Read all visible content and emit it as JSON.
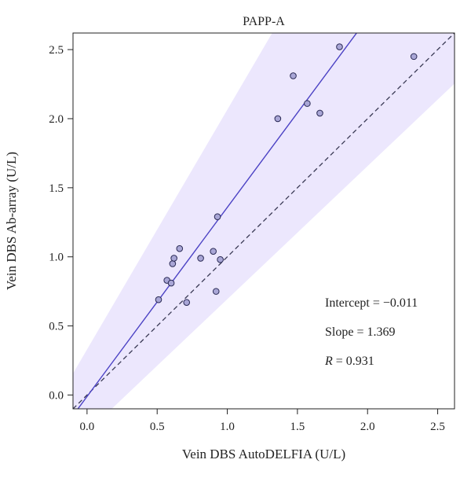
{
  "chart_data": {
    "type": "scatter",
    "title": "PAPP-A",
    "xlabel": "Vein DBS AutoDELFIA (U/L)",
    "ylabel": "Vein DBS Ab-array (U/L)",
    "xlim": [
      -0.1,
      2.62
    ],
    "ylim": [
      -0.1,
      2.62
    ],
    "x_ticks": [
      0.0,
      0.5,
      1.0,
      1.5,
      2.0,
      2.5
    ],
    "y_ticks": [
      0.0,
      0.5,
      1.0,
      1.5,
      2.0,
      2.5
    ],
    "x_tick_labels": [
      "0.0",
      "0.5",
      "1.0",
      "1.5",
      "2.0",
      "2.5"
    ],
    "y_tick_labels": [
      "0.0",
      "0.5",
      "1.0",
      "1.5",
      "2.0",
      "2.5"
    ],
    "points": [
      {
        "x": 0.51,
        "y": 0.69
      },
      {
        "x": 0.57,
        "y": 0.83
      },
      {
        "x": 0.6,
        "y": 0.81
      },
      {
        "x": 0.61,
        "y": 0.95
      },
      {
        "x": 0.62,
        "y": 0.99
      },
      {
        "x": 0.66,
        "y": 1.06
      },
      {
        "x": 0.71,
        "y": 0.67
      },
      {
        "x": 0.81,
        "y": 0.99
      },
      {
        "x": 0.9,
        "y": 1.04
      },
      {
        "x": 0.92,
        "y": 0.75
      },
      {
        "x": 0.93,
        "y": 1.29
      },
      {
        "x": 0.95,
        "y": 0.98
      },
      {
        "x": 1.36,
        "y": 2.0
      },
      {
        "x": 1.47,
        "y": 2.31
      },
      {
        "x": 1.57,
        "y": 2.11
      },
      {
        "x": 1.66,
        "y": 2.04
      },
      {
        "x": 1.8,
        "y": 2.52
      },
      {
        "x": 2.33,
        "y": 2.45
      }
    ],
    "fit_line": {
      "intercept": -0.011,
      "slope": 1.369
    },
    "identity_line": {
      "intercept": 0,
      "slope": 1
    },
    "band": {
      "x_at_y0": [
        -0.19,
        0.28
      ],
      "at_top_edge": {
        "y": 2.62,
        "x_range": [
          1.32,
          3.0
        ]
      }
    },
    "colors": {
      "points_fill": "#a9a6d6",
      "points_stroke": "#2a2a55",
      "fit_line": "#4b42c4",
      "identity_line": "#3a3a55",
      "band": "#ece7fd"
    },
    "annotations": {
      "intercept": "Intercept = −0.011",
      "slope": "Slope = 1.369",
      "r_symbol": "R",
      "r_value": " = 0.931"
    },
    "grid": false
  }
}
